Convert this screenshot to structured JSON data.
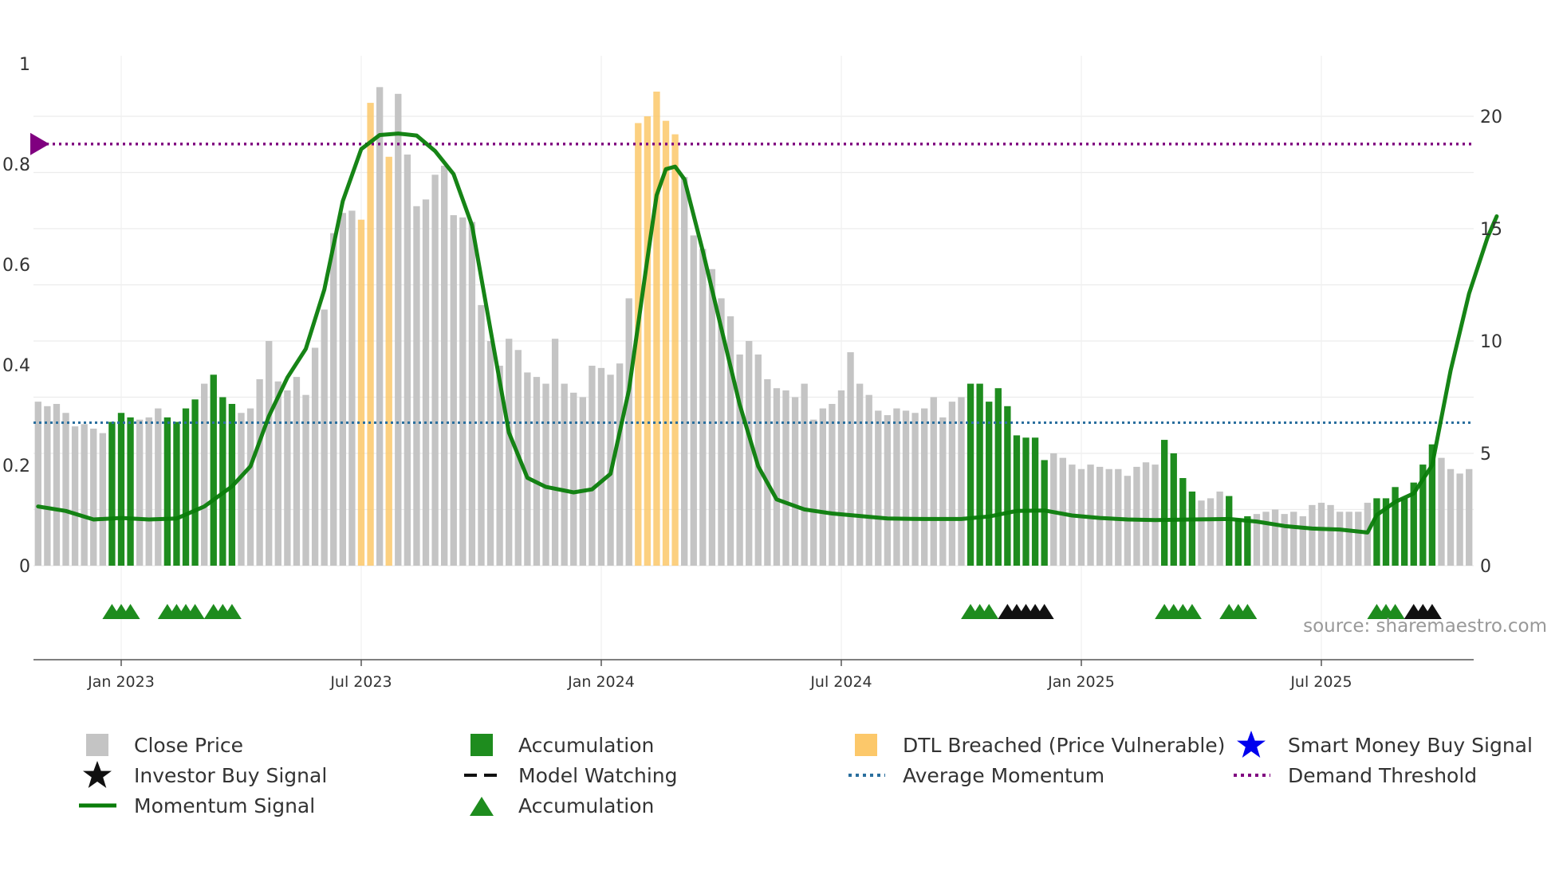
{
  "colors": {
    "close": "#c4c4c4",
    "accumulation": "#1e8c1e",
    "dtl": "#fcc86a",
    "momentum": "#0a7d0a",
    "avg_momentum": "#2a6f9e",
    "demand": "#800080",
    "investor": "#111111",
    "smart_money": "#0000ee",
    "grid": "#ececec"
  },
  "source_label": "source: sharemaestro.com",
  "legend": [
    {
      "key": "close",
      "label": "Close Price",
      "symbol": "square-grey"
    },
    {
      "key": "accum_bar",
      "label": "Accumulation",
      "symbol": "square-green"
    },
    {
      "key": "dtl",
      "label": "DTL Breached (Price Vulnerable)",
      "symbol": "square-orange"
    },
    {
      "key": "smart",
      "label": "Smart Money Buy Signal",
      "symbol": "star-blue"
    },
    {
      "key": "investor",
      "label": "Investor Buy Signal",
      "symbol": "star-black"
    },
    {
      "key": "watch",
      "label": "Model Watching",
      "symbol": "dash-black"
    },
    {
      "key": "avg",
      "label": "Average Momentum",
      "symbol": "dot-blue"
    },
    {
      "key": "demand",
      "label": "Demand Threshold",
      "symbol": "dot-purple"
    },
    {
      "key": "momentum",
      "label": "Momentum Signal",
      "symbol": "line-green"
    },
    {
      "key": "accum_marker",
      "label": "Accumulation",
      "symbol": "triangle-green"
    }
  ],
  "chart_data": {
    "type": "bar",
    "title": "",
    "xlabel": "",
    "x_ticks": [
      "Jan 2023",
      "Jul 2023",
      "Jan 2024",
      "Jul 2024",
      "Jan 2025",
      "Jul 2025"
    ],
    "x_tick_week_index": [
      9,
      35,
      61,
      87,
      113,
      139
    ],
    "y_left": {
      "label": "",
      "range": [
        0,
        1
      ],
      "ticks": [
        "0",
        "0.2",
        "0.4",
        "0.6",
        "0.8",
        "1"
      ]
    },
    "y_right": {
      "label": "",
      "range": [
        0,
        22.4
      ],
      "ticks": [
        "0",
        "5",
        "10",
        "15",
        "20"
      ]
    },
    "close_price": [
      7.3,
      7.1,
      7.2,
      6.8,
      6.2,
      6.3,
      6.1,
      5.9,
      6.4,
      6.8,
      6.6,
      6.5,
      6.6,
      7.0,
      6.6,
      6.4,
      7.0,
      7.4,
      8.1,
      8.5,
      7.5,
      7.2,
      6.8,
      7.0,
      8.3,
      10.0,
      8.2,
      7.8,
      8.4,
      7.6,
      9.7,
      11.4,
      14.8,
      15.7,
      15.8,
      15.4,
      20.6,
      21.3,
      18.2,
      21.0,
      18.3,
      16.0,
      16.3,
      17.4,
      17.8,
      15.6,
      15.5,
      15.3,
      11.6,
      10.0,
      8.9,
      10.1,
      9.6,
      8.6,
      8.4,
      8.1,
      10.1,
      8.1,
      7.7,
      7.5,
      8.9,
      8.8,
      8.5,
      9.0,
      11.9,
      19.7,
      20.0,
      21.1,
      19.8,
      19.2,
      17.3,
      14.7,
      14.1,
      13.2,
      11.9,
      11.1,
      9.4,
      10.0,
      9.4,
      8.3,
      7.9,
      7.8,
      7.5,
      8.1,
      6.5,
      7.0,
      7.2,
      7.8,
      9.5,
      8.1,
      7.6,
      6.9,
      6.7,
      7.0,
      6.9,
      6.8,
      7.0,
      7.5,
      6.6,
      7.3,
      7.5,
      8.1,
      8.1,
      7.3,
      7.9,
      7.1,
      5.8,
      5.7,
      5.7,
      4.7,
      5.0,
      4.8,
      4.5,
      4.3,
      4.5,
      4.4,
      4.3,
      4.3,
      4.0,
      4.4,
      4.6,
      4.5,
      5.6,
      5.0,
      3.9,
      3.3,
      2.9,
      3.0,
      3.3,
      3.1,
      2.1,
      2.2,
      2.3,
      2.4,
      2.5,
      2.3,
      2.4,
      2.2,
      2.7,
      2.8,
      2.7,
      2.4,
      2.4,
      2.4,
      2.8,
      3.0,
      3.0,
      3.5,
      3.0,
      3.7,
      4.5,
      5.4,
      4.8,
      4.3,
      4.1,
      4.3
    ],
    "accumulation_weeks": [
      8,
      9,
      10,
      14,
      15,
      16,
      17,
      19,
      20,
      21,
      101,
      102,
      103,
      104,
      105,
      106,
      107,
      108,
      109,
      122,
      123,
      124,
      125,
      129,
      130,
      131,
      145,
      146,
      147,
      148,
      149,
      150,
      151
    ],
    "dtl_breached_weeks": [
      35,
      36,
      38,
      65,
      66,
      67,
      68,
      69
    ],
    "momentum_signal_norm": [
      [
        0,
        0.118
      ],
      [
        3,
        0.109
      ],
      [
        6,
        0.092
      ],
      [
        9,
        0.095
      ],
      [
        12,
        0.092
      ],
      [
        15,
        0.094
      ],
      [
        18,
        0.118
      ],
      [
        21,
        0.158
      ],
      [
        23,
        0.198
      ],
      [
        25,
        0.298
      ],
      [
        27,
        0.375
      ],
      [
        29,
        0.432
      ],
      [
        31,
        0.55
      ],
      [
        33,
        0.726
      ],
      [
        35,
        0.83
      ],
      [
        37,
        0.858
      ],
      [
        39,
        0.861
      ],
      [
        41,
        0.857
      ],
      [
        43,
        0.826
      ],
      [
        45,
        0.78
      ],
      [
        47,
        0.678
      ],
      [
        49,
        0.47
      ],
      [
        51,
        0.265
      ],
      [
        53,
        0.175
      ],
      [
        55,
        0.157
      ],
      [
        58,
        0.146
      ],
      [
        60,
        0.152
      ],
      [
        62,
        0.183
      ],
      [
        64,
        0.35
      ],
      [
        66,
        0.612
      ],
      [
        67,
        0.738
      ],
      [
        68,
        0.79
      ],
      [
        69,
        0.795
      ],
      [
        70,
        0.77
      ],
      [
        72,
        0.627
      ],
      [
        74,
        0.473
      ],
      [
        76,
        0.321
      ],
      [
        78,
        0.198
      ],
      [
        80,
        0.132
      ],
      [
        83,
        0.112
      ],
      [
        86,
        0.104
      ],
      [
        89,
        0.099
      ],
      [
        92,
        0.094
      ],
      [
        96,
        0.093
      ],
      [
        100,
        0.093
      ],
      [
        103,
        0.098
      ],
      [
        106,
        0.109
      ],
      [
        109,
        0.11
      ],
      [
        112,
        0.1
      ],
      [
        115,
        0.095
      ],
      [
        118,
        0.092
      ],
      [
        121,
        0.091
      ],
      [
        125,
        0.092
      ],
      [
        129,
        0.093
      ],
      [
        132,
        0.088
      ],
      [
        135,
        0.079
      ],
      [
        138,
        0.074
      ],
      [
        141,
        0.072
      ],
      [
        144,
        0.066
      ],
      [
        145,
        0.101
      ],
      [
        147,
        0.127
      ],
      [
        149,
        0.144
      ],
      [
        151,
        0.2
      ],
      [
        153,
        0.389
      ],
      [
        155,
        0.542
      ],
      [
        157,
        0.654
      ],
      [
        158,
        0.696
      ]
    ],
    "average_momentum_norm": 0.285,
    "demand_threshold_norm": 0.84,
    "accumulation_marker_weeks": [
      8,
      9,
      10,
      14,
      15,
      16,
      17,
      19,
      20,
      21,
      101,
      102,
      103,
      122,
      123,
      124,
      125,
      129,
      130,
      131,
      145,
      146,
      147
    ],
    "investor_buy_weeks": [
      105,
      106,
      107,
      108,
      109,
      149,
      150,
      151
    ]
  }
}
